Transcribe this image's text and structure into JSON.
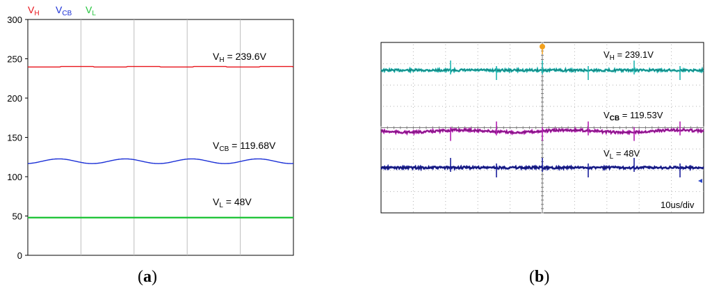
{
  "chart_data": [
    {
      "type": "line",
      "panel": "a",
      "ylim": [
        0,
        300
      ],
      "yticks": [
        "0",
        "50",
        "100",
        "150",
        "200",
        "250",
        "300"
      ],
      "grid": true,
      "legend": {
        "placement": "top-left",
        "entries": [
          {
            "base": "V",
            "sub": "H",
            "color": "#e8141b"
          },
          {
            "base": "V",
            "sub": "CB",
            "color": "#1a2fd6"
          },
          {
            "base": "V",
            "sub": "L",
            "color": "#21c43a"
          }
        ]
      },
      "series": [
        {
          "name": "VH",
          "color": "#e8141b",
          "mean": 239.6,
          "ripple": 0.6,
          "shape": "step"
        },
        {
          "name": "VCB",
          "color": "#1a2fd6",
          "mean": 119.68,
          "ripple": 3.0,
          "shape": "sine",
          "cycles": 4
        },
        {
          "name": "VL",
          "color": "#21c43a",
          "mean": 48,
          "ripple": 0.2,
          "shape": "flat"
        }
      ],
      "annotations": [
        {
          "base": "V",
          "sub": "H",
          "text": " = 239.6V"
        },
        {
          "base": "V",
          "sub": "CB",
          "text": " = 119.68V"
        },
        {
          "base": "V",
          "sub": "L",
          "text": " = 48V"
        }
      ]
    },
    {
      "type": "line",
      "panel": "b",
      "grid": true,
      "grid_divisions": {
        "x": 10,
        "y": 8
      },
      "timebase": "10us/div",
      "series": [
        {
          "name": "VH",
          "color": "#1fb5b0",
          "mean": 239.1
        },
        {
          "name": "VCB",
          "color": "#b21fb0",
          "mean": 119.53
        },
        {
          "name": "VL",
          "color": "#1a1f9c",
          "mean": 48
        }
      ],
      "annotations": [
        {
          "base": "V",
          "sub": "H",
          "text": " = 239.1V",
          "bold_sub": false
        },
        {
          "base": "V",
          "sub": "CB",
          "text": " = 119.53V",
          "bold_sub": true
        },
        {
          "base": "V",
          "sub": "L",
          "text": " = 48V",
          "bold_sub": false
        }
      ]
    }
  ],
  "labels": {
    "a": {
      "open": "(",
      "letter": "a",
      "close": ")"
    },
    "b": {
      "open": "(",
      "letter": "b",
      "close": ")"
    }
  }
}
